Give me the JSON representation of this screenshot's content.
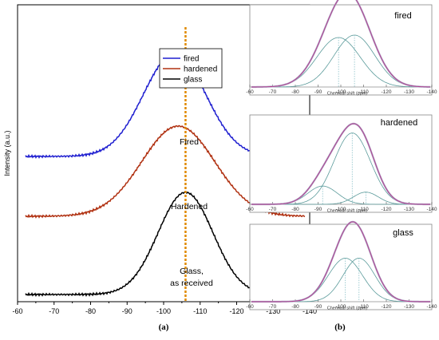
{
  "panel_labels": {
    "a": "(a)",
    "b": "(b)"
  },
  "chart_data": [
    {
      "panel": "a",
      "type": "line",
      "ylabel": "Intensity (a.u.)",
      "xlim": [
        -60,
        -140
      ],
      "x_ticks": [
        -60,
        -70,
        -80,
        -90,
        -100,
        -110,
        -120,
        -130,
        -140
      ],
      "reference_line_x": -106,
      "legend": {
        "placement": "top-right",
        "entries": [
          "fired",
          "hardened",
          "glass"
        ]
      },
      "series": [
        {
          "name": "fired",
          "color": "#1f1fd0",
          "label": "Fired",
          "peak_x": -103,
          "peak_intensity": 1.0,
          "width": 8.5
        },
        {
          "name": "hardened",
          "color": "#b03010",
          "label": "Hardened",
          "peak_x": -104,
          "peak_intensity": 1.0,
          "width": 10
        },
        {
          "name": "glass",
          "color": "#000000",
          "label": "Glass,\nas received",
          "peak_x": -106,
          "peak_intensity": 1.0,
          "width": 7.5
        }
      ],
      "annotations": [
        "Fired",
        "Hardened",
        "Glass,",
        "as received"
      ]
    },
    {
      "panel": "b",
      "type": "line",
      "title": "fired",
      "xlabel": "Chemical shift (ppm)",
      "xlim": [
        -60,
        -140
      ],
      "x_ticks": [
        -60,
        -70,
        -80,
        -90,
        -100,
        -110,
        -120,
        -130,
        -140
      ],
      "components": [
        {
          "center": -99,
          "height": 0.62,
          "width": 9.5
        },
        {
          "center": -106,
          "height": 0.65,
          "width": 9.0
        }
      ]
    },
    {
      "panel": "b",
      "type": "line",
      "title": "hardened",
      "xlabel": "Chemical shift (ppm)",
      "xlim": [
        -60,
        -140
      ],
      "x_ticks": [
        -60,
        -70,
        -80,
        -90,
        -100,
        -110,
        -120,
        -130,
        -140
      ],
      "components": [
        {
          "center": -92,
          "height": 0.21,
          "width": 6.5
        },
        {
          "center": -105,
          "height": 0.82,
          "width": 8.0
        },
        {
          "center": -111,
          "height": 0.14,
          "width": 5.5
        }
      ]
    },
    {
      "panel": "b",
      "type": "line",
      "title": "glass",
      "xlabel": "Chemical shift (ppm)",
      "xlim": [
        -60,
        -140
      ],
      "x_ticks": [
        -60,
        -70,
        -80,
        -90,
        -100,
        -110,
        -120,
        -130,
        -140
      ],
      "components": [
        {
          "center": -102,
          "height": 0.58,
          "width": 7.5
        },
        {
          "center": -108,
          "height": 0.58,
          "width": 7.0
        }
      ]
    }
  ]
}
